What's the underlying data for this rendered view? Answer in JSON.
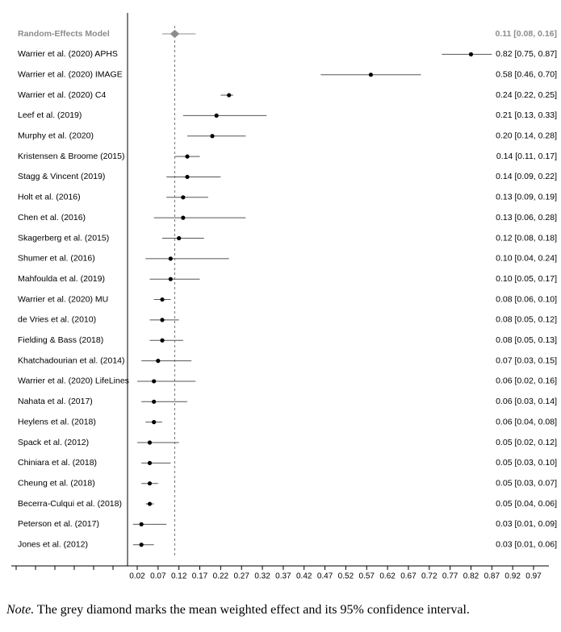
{
  "chart_data": {
    "type": "forest",
    "xlabel": "",
    "xlim": [
      0.0,
      0.98
    ],
    "x_ticks": [
      0.02,
      0.07,
      0.12,
      0.17,
      0.22,
      0.27,
      0.32,
      0.37,
      0.42,
      0.47,
      0.52,
      0.57,
      0.62,
      0.67,
      0.72,
      0.77,
      0.82,
      0.87,
      0.92,
      0.97
    ],
    "x_tick_labels": [
      "0.02",
      "0.07",
      "0.12",
      "0.17",
      "0.22",
      "0.27",
      "0.32",
      "0.37",
      "0.42",
      "0.47",
      "0.52",
      "0.57",
      "0.62",
      "0.67",
      "0.72",
      "0.77",
      "0.82",
      "0.87",
      "0.92",
      "0.97"
    ],
    "summary": {
      "label": "Random-Effects Model",
      "estimate": 0.11,
      "lower": 0.08,
      "upper": 0.16,
      "text": "0.11 [0.08, 0.16]",
      "color": "#8c8c8c"
    },
    "reference_line": 0.11,
    "studies": [
      {
        "label": "Warrier et al. (2020) APHS",
        "estimate": 0.82,
        "lower": 0.75,
        "upper": 0.87,
        "text": "0.82 [0.75, 0.87]"
      },
      {
        "label": "Warrier et al. (2020) IMAGE",
        "estimate": 0.58,
        "lower": 0.46,
        "upper": 0.7,
        "text": "0.58 [0.46, 0.70]"
      },
      {
        "label": "Warrier et al. (2020) C4",
        "estimate": 0.24,
        "lower": 0.22,
        "upper": 0.25,
        "text": "0.24 [0.22, 0.25]"
      },
      {
        "label": "Leef et al. (2019)",
        "estimate": 0.21,
        "lower": 0.13,
        "upper": 0.33,
        "text": "0.21 [0.13, 0.33]"
      },
      {
        "label": "Murphy et al. (2020)",
        "estimate": 0.2,
        "lower": 0.14,
        "upper": 0.28,
        "text": "0.20 [0.14, 0.28]"
      },
      {
        "label": "Kristensen & Broome (2015)",
        "estimate": 0.14,
        "lower": 0.11,
        "upper": 0.17,
        "text": "0.14 [0.11, 0.17]"
      },
      {
        "label": "Stagg & Vincent (2019)",
        "estimate": 0.14,
        "lower": 0.09,
        "upper": 0.22,
        "text": "0.14 [0.09, 0.22]"
      },
      {
        "label": "Holt et al. (2016)",
        "estimate": 0.13,
        "lower": 0.09,
        "upper": 0.19,
        "text": "0.13 [0.09, 0.19]"
      },
      {
        "label": "Chen et al. (2016)",
        "estimate": 0.13,
        "lower": 0.06,
        "upper": 0.28,
        "text": "0.13 [0.06, 0.28]"
      },
      {
        "label": "Skagerberg et al. (2015)",
        "estimate": 0.12,
        "lower": 0.08,
        "upper": 0.18,
        "text": "0.12 [0.08, 0.18]"
      },
      {
        "label": "Shumer et al. (2016)",
        "estimate": 0.1,
        "lower": 0.04,
        "upper": 0.24,
        "text": "0.10 [0.04, 0.24]"
      },
      {
        "label": "Mahfoulda et al. (2019)",
        "estimate": 0.1,
        "lower": 0.05,
        "upper": 0.17,
        "text": "0.10 [0.05, 0.17]"
      },
      {
        "label": "Warrier et al. (2020) MU",
        "estimate": 0.08,
        "lower": 0.06,
        "upper": 0.1,
        "text": "0.08 [0.06, 0.10]"
      },
      {
        "label": "de Vries et al. (2010)",
        "estimate": 0.08,
        "lower": 0.05,
        "upper": 0.12,
        "text": "0.08 [0.05, 0.12]"
      },
      {
        "label": "Fielding & Bass (2018)",
        "estimate": 0.08,
        "lower": 0.05,
        "upper": 0.13,
        "text": "0.08 [0.05, 0.13]"
      },
      {
        "label": "Khatchadourian et al. (2014)",
        "estimate": 0.07,
        "lower": 0.03,
        "upper": 0.15,
        "text": "0.07 [0.03, 0.15]"
      },
      {
        "label": "Warrier et al. (2020) LifeLines",
        "estimate": 0.06,
        "lower": 0.02,
        "upper": 0.16,
        "text": "0.06 [0.02, 0.16]"
      },
      {
        "label": "Nahata et al. (2017)",
        "estimate": 0.06,
        "lower": 0.03,
        "upper": 0.14,
        "text": "0.06 [0.03, 0.14]"
      },
      {
        "label": "Heylens et al. (2018)",
        "estimate": 0.06,
        "lower": 0.04,
        "upper": 0.08,
        "text": "0.06 [0.04, 0.08]"
      },
      {
        "label": "Spack et al. (2012)",
        "estimate": 0.05,
        "lower": 0.02,
        "upper": 0.12,
        "text": "0.05 [0.02, 0.12]"
      },
      {
        "label": "Chiniara et al. (2018)",
        "estimate": 0.05,
        "lower": 0.03,
        "upper": 0.1,
        "text": "0.05 [0.03, 0.10]"
      },
      {
        "label": "Cheung et al. (2018)",
        "estimate": 0.05,
        "lower": 0.03,
        "upper": 0.07,
        "text": "0.05 [0.03, 0.07]"
      },
      {
        "label": "Becerra-Culqui et al. (2018)",
        "estimate": 0.05,
        "lower": 0.04,
        "upper": 0.06,
        "text": "0.05 [0.04, 0.06]"
      },
      {
        "label": "Peterson et al. (2017)",
        "estimate": 0.03,
        "lower": 0.01,
        "upper": 0.09,
        "text": "0.03 [0.01, 0.09]"
      },
      {
        "label": "Jones et al. (2012)",
        "estimate": 0.03,
        "lower": 0.01,
        "upper": 0.06,
        "text": "0.03 [0.01, 0.06]"
      }
    ]
  },
  "note": {
    "lead": "Note.",
    "text": " The grey diamond marks the mean weighted effect and its 95% confidence interval."
  }
}
